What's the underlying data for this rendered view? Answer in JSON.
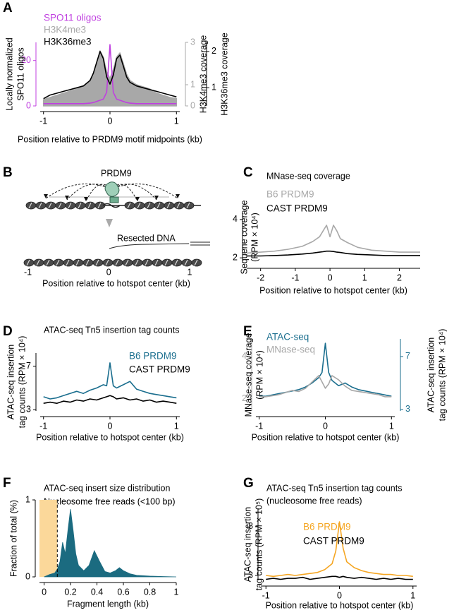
{
  "chart_data": [
    {
      "panel": "A",
      "type": "line",
      "colored_axes": true,
      "xlabel": "Position relative to PRDM9 motif midpoints (kb)",
      "ylabel": [
        "Locally normalized",
        "SPO11 oligos"
      ],
      "y2label": "H3K4me3 coverage",
      "y3label": "H3K36me3 coverage",
      "xlim": [
        -1.05,
        1.05
      ],
      "xticks": [
        -1,
        0,
        1
      ],
      "ylim": [
        0,
        28
      ],
      "yticks": [
        0,
        20
      ],
      "y2lim": [
        0,
        3
      ],
      "y2ticks": [
        0,
        1,
        3
      ],
      "y3lim": [
        0.5,
        2.25
      ],
      "y3ticks": [
        1,
        2
      ],
      "x": [
        -1,
        -0.9,
        -0.8,
        -0.7,
        -0.6,
        -0.5,
        -0.4,
        -0.3,
        -0.25,
        -0.2,
        -0.15,
        -0.1,
        -0.05,
        0,
        0.05,
        0.1,
        0.15,
        0.2,
        0.25,
        0.3,
        0.4,
        0.5,
        0.6,
        0.7,
        0.8,
        0.9,
        1
      ],
      "series": [
        {
          "name": "SPO11 oligos",
          "color": "#c040e0",
          "axis": "y",
          "values": [
            1,
            1,
            1,
            1,
            1,
            1,
            1,
            1.2,
            1.5,
            2,
            2.5,
            3,
            6,
            27,
            6,
            3,
            2.5,
            2,
            1.5,
            1.2,
            1,
            1,
            1,
            1,
            1,
            1,
            1
          ]
        },
        {
          "name": "H3K4me3",
          "color": "#a8a8a8",
          "axis": "y2",
          "fill": true,
          "values": [
            0.3,
            0.4,
            0.5,
            0.6,
            0.7,
            0.8,
            0.9,
            1.2,
            1.5,
            2.0,
            2.6,
            2.3,
            1.6,
            1.3,
            1.7,
            2.3,
            2.5,
            2.0,
            1.5,
            1.2,
            1.0,
            0.9,
            0.8,
            0.6,
            0.5,
            0.4,
            0.35
          ]
        },
        {
          "name": "H3K36me3",
          "color": "#000000",
          "axis": "y3",
          "values": [
            0.7,
            0.8,
            0.85,
            0.9,
            0.95,
            1.0,
            1.05,
            1.2,
            1.4,
            1.7,
            2.0,
            1.8,
            1.3,
            1.1,
            1.35,
            1.8,
            1.9,
            1.6,
            1.3,
            1.15,
            1.05,
            1.0,
            0.95,
            0.9,
            0.85,
            0.8,
            0.75
          ]
        }
      ]
    },
    {
      "panel": "B",
      "type": "diagram",
      "labels": [
        "PRDM9",
        "Resected DNA"
      ],
      "xlabel": "Position relative to hotspot center (kb)",
      "xlim": [
        -1.04,
        1.14
      ],
      "xticks": [
        -1,
        0,
        1
      ]
    },
    {
      "panel": "C",
      "type": "line",
      "title": "MNase-seq coverage",
      "xlabel": "Position relative to hotspot center (kb)",
      "ylabel": [
        "Sequene coverage",
        "(RPM × 10⁴)"
      ],
      "xlim": [
        -2.4,
        2.6
      ],
      "xticks": [
        -2,
        -1,
        0,
        1,
        2
      ],
      "ylim": [
        1.75,
        4.4
      ],
      "yticks": [
        2,
        4
      ],
      "x": [
        -2.4,
        -2,
        -1.6,
        -1.2,
        -0.8,
        -0.5,
        -0.3,
        -0.2,
        -0.1,
        0,
        0.1,
        0.2,
        0.3,
        0.5,
        0.8,
        1.2,
        1.6,
        2,
        2.4,
        2.6
      ],
      "series": [
        {
          "name": "B6 PRDM9",
          "color": "#a8a8a8",
          "values": [
            2.25,
            2.3,
            2.35,
            2.45,
            2.6,
            2.85,
            3.1,
            3.4,
            3.7,
            3.1,
            3.7,
            3.4,
            3.0,
            2.8,
            2.55,
            2.4,
            2.35,
            2.3,
            2.3,
            2.3
          ]
        },
        {
          "name": "CAST PRDM9",
          "color": "#000000",
          "values": [
            2.1,
            2.1,
            2.12,
            2.15,
            2.2,
            2.25,
            2.3,
            2.32,
            2.35,
            2.35,
            2.33,
            2.3,
            2.28,
            2.22,
            2.18,
            2.15,
            2.12,
            2.12,
            2.12,
            2.12
          ]
        }
      ]
    },
    {
      "panel": "D",
      "type": "line",
      "title": "ATAC-seq Tn5 insertion tag counts",
      "xlabel": "Position relative to hotspot center (kb)",
      "ylabel": [
        "ATAC-seq insertion",
        "tag counts (RPM × 10⁴)"
      ],
      "xlim": [
        -1.05,
        1.05
      ],
      "xticks": [
        -1,
        0,
        1
      ],
      "ylim": [
        2.9,
        8.2
      ],
      "yticks": [
        3,
        7
      ],
      "x": [
        -1,
        -0.9,
        -0.8,
        -0.7,
        -0.6,
        -0.5,
        -0.4,
        -0.3,
        -0.2,
        -0.1,
        -0.05,
        0,
        0.05,
        0.1,
        0.2,
        0.3,
        0.4,
        0.5,
        0.6,
        0.7,
        0.8,
        0.9,
        1
      ],
      "series": [
        {
          "name": "B6 PRDM9",
          "color": "#1a6e8e",
          "values": [
            4.2,
            4.0,
            4.1,
            4.3,
            4.5,
            4.7,
            4.5,
            4.8,
            5.0,
            5.3,
            5.2,
            7.3,
            5.2,
            5.0,
            5.3,
            5.6,
            4.9,
            4.7,
            4.5,
            4.4,
            4.3,
            4.2,
            4.1
          ]
        },
        {
          "name": "CAST PRDM9",
          "color": "#000000",
          "values": [
            3.6,
            3.7,
            3.6,
            3.8,
            3.7,
            3.9,
            3.8,
            4.0,
            3.9,
            4.1,
            4.2,
            4.3,
            4.2,
            4.0,
            4.1,
            3.9,
            4.0,
            3.8,
            3.9,
            3.7,
            3.8,
            3.7,
            3.6
          ]
        }
      ]
    },
    {
      "panel": "E",
      "type": "line",
      "colored_axes": true,
      "xlabel": "Position relative to hotspot center (kb)",
      "ylabel": [
        "MNase-seq coverage",
        "(RPM × 10⁴)"
      ],
      "y2label": [
        "ATAC-seq insertion",
        "tag counts (RPM × 10⁴)"
      ],
      "xlim": [
        -1.05,
        1.05
      ],
      "xticks": [
        -1,
        0,
        1
      ],
      "ylim": [
        1.43,
        4.83
      ],
      "yticks": [
        2,
        4
      ],
      "y2lim": [
        2.89,
        8.33
      ],
      "y2ticks": [
        3,
        7
      ],
      "x": [
        -1,
        -0.9,
        -0.8,
        -0.7,
        -0.6,
        -0.5,
        -0.4,
        -0.3,
        -0.2,
        -0.1,
        -0.05,
        0,
        0.05,
        0.1,
        0.2,
        0.3,
        0.4,
        0.5,
        0.6,
        0.7,
        0.8,
        0.9,
        1
      ],
      "series": [
        {
          "name": "ATAC-seq",
          "color": "#1a6e8e",
          "axis": "y2",
          "values": [
            4.0,
            4.0,
            4.1,
            4.2,
            4.3,
            4.4,
            4.5,
            4.7,
            5.0,
            5.4,
            5.8,
            8.0,
            5.8,
            5.2,
            4.8,
            5.0,
            4.7,
            4.5,
            4.4,
            4.3,
            4.2,
            4.1,
            4.0
          ]
        },
        {
          "name": "MNase-seq",
          "color": "#a8a8a8",
          "axis": "y",
          "values": [
            2.1,
            2.1,
            2.15,
            2.2,
            2.3,
            2.4,
            2.35,
            2.5,
            2.8,
            3.1,
            2.8,
            2.5,
            2.7,
            3.1,
            2.9,
            2.6,
            2.4,
            2.35,
            2.3,
            2.25,
            2.2,
            2.1,
            2.1
          ]
        }
      ]
    },
    {
      "panel": "F",
      "type": "area",
      "title": [
        "ATAC-seq insert size distribution",
        "Nucleosome free reads (<100 bp)"
      ],
      "xlabel": "Fragment length (kb)",
      "ylabel": [
        "Fraction of total (%)"
      ],
      "xlim": [
        -0.035,
        1.0
      ],
      "xticks": [
        0,
        0.2,
        0.4,
        0.6,
        0.8,
        1
      ],
      "ylim": [
        0,
        1
      ],
      "yticks": [
        0,
        1
      ],
      "cutoff": 0.1,
      "highlight_color": "#fbd89a",
      "color": "#1b6b80",
      "x": [
        0,
        0.04,
        0.08,
        0.1,
        0.12,
        0.14,
        0.16,
        0.18,
        0.2,
        0.22,
        0.24,
        0.26,
        0.3,
        0.34,
        0.38,
        0.42,
        0.46,
        0.5,
        0.54,
        0.57,
        0.6,
        0.65,
        0.7,
        0.8,
        0.9,
        1
      ],
      "values": [
        0,
        0.03,
        0.05,
        0.1,
        0.2,
        0.45,
        0.3,
        0.6,
        0.88,
        0.6,
        0.3,
        0.15,
        0.08,
        0.15,
        0.34,
        0.2,
        0.07,
        0.05,
        0.08,
        0.12,
        0.08,
        0.04,
        0.02,
        0.01,
        0.005,
        0
      ]
    },
    {
      "panel": "G",
      "type": "line",
      "title": [
        "ATAC-seq Tn5 insertion tag counts",
        "(nucleosome free reads)"
      ],
      "xlabel": "Position relative to hotspot center (kb)",
      "ylabel": [
        "ATAC-seq insertion",
        "tag counts (RPM × 10⁵)"
      ],
      "xlim": [
        -1.05,
        1.05
      ],
      "xticks": [
        -1,
        0,
        1
      ],
      "ylim": [
        2.49,
        9.88
      ],
      "yticks": [
        3,
        8
      ],
      "x": [
        -1,
        -0.9,
        -0.8,
        -0.7,
        -0.6,
        -0.5,
        -0.4,
        -0.3,
        -0.2,
        -0.1,
        -0.05,
        0,
        0.05,
        0.1,
        0.2,
        0.3,
        0.4,
        0.5,
        0.6,
        0.7,
        0.8,
        0.9,
        1
      ],
      "series": [
        {
          "name": "B6 PRDM9",
          "color": "#f5a623",
          "values": [
            3.0,
            2.9,
            3.0,
            3.1,
            3.0,
            3.1,
            3.2,
            3.3,
            3.6,
            4.2,
            5.5,
            8.5,
            5.8,
            4.4,
            3.8,
            3.5,
            3.3,
            3.2,
            3.1,
            3.1,
            3.0,
            3.0,
            2.9
          ]
        },
        {
          "name": "CAST PRDM9",
          "color": "#000000",
          "values": [
            2.6,
            2.7,
            2.6,
            2.7,
            2.7,
            2.8,
            2.6,
            2.7,
            2.8,
            2.9,
            2.9,
            2.8,
            2.9,
            2.8,
            2.7,
            2.8,
            2.7,
            2.6,
            2.7,
            2.6,
            2.7,
            2.6,
            2.6
          ]
        }
      ]
    }
  ]
}
